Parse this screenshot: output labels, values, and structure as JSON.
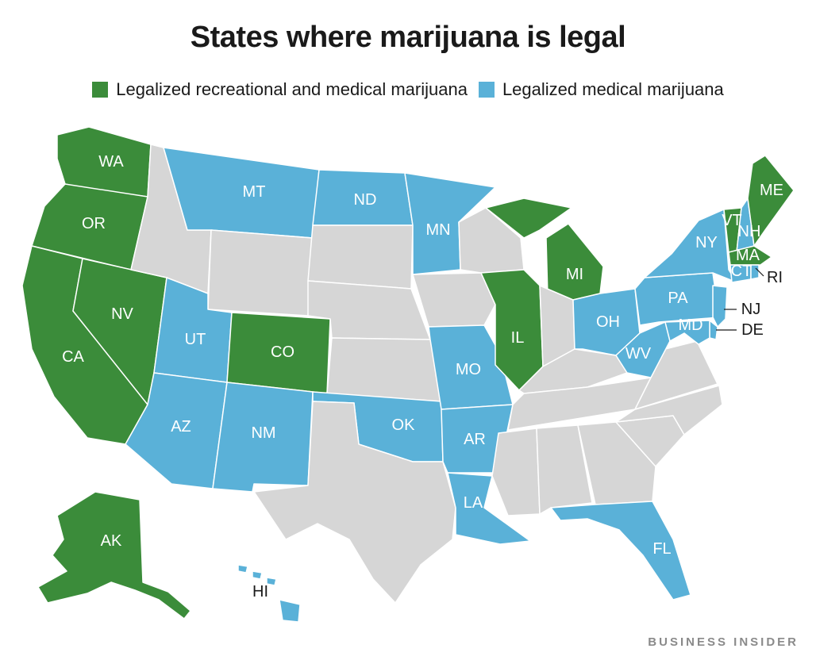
{
  "title": "States where marijuana is legal",
  "colors": {
    "recreational": "#3b8c3a",
    "medical": "#5ab1d8",
    "none": "#d6d6d6",
    "border": "#ffffff"
  },
  "legend": {
    "recreational": "Legalized recreational and medical marijuana",
    "medical": "Legalized medical marijuana"
  },
  "states": {
    "WA": {
      "label": "WA",
      "status": "recreational"
    },
    "OR": {
      "label": "OR",
      "status": "recreational"
    },
    "CA": {
      "label": "CA",
      "status": "recreational"
    },
    "NV": {
      "label": "NV",
      "status": "recreational"
    },
    "CO": {
      "label": "CO",
      "status": "recreational"
    },
    "AK": {
      "label": "AK",
      "status": "recreational"
    },
    "MI": {
      "label": "MI",
      "status": "recreational"
    },
    "IL": {
      "label": "IL",
      "status": "recreational"
    },
    "VT": {
      "label": "VT",
      "status": "recreational"
    },
    "MA": {
      "label": "MA",
      "status": "recreational"
    },
    "ME": {
      "label": "ME",
      "status": "recreational"
    },
    "MT": {
      "label": "MT",
      "status": "medical"
    },
    "ND": {
      "label": "ND",
      "status": "medical"
    },
    "MN": {
      "label": "MN",
      "status": "medical"
    },
    "UT": {
      "label": "UT",
      "status": "medical"
    },
    "AZ": {
      "label": "AZ",
      "status": "medical"
    },
    "NM": {
      "label": "NM",
      "status": "medical"
    },
    "OK": {
      "label": "OK",
      "status": "medical"
    },
    "MO": {
      "label": "MO",
      "status": "medical"
    },
    "AR": {
      "label": "AR",
      "status": "medical"
    },
    "LA": {
      "label": "LA",
      "status": "medical"
    },
    "FL": {
      "label": "FL",
      "status": "medical"
    },
    "OH": {
      "label": "OH",
      "status": "medical"
    },
    "WV": {
      "label": "WV",
      "status": "medical"
    },
    "PA": {
      "label": "PA",
      "status": "medical"
    },
    "NY": {
      "label": "NY",
      "status": "medical"
    },
    "NH": {
      "label": "NH",
      "status": "medical"
    },
    "CT": {
      "label": "CT",
      "status": "medical"
    },
    "RI": {
      "label": "RI",
      "status": "medical"
    },
    "NJ": {
      "label": "NJ",
      "status": "medical"
    },
    "DE": {
      "label": "DE",
      "status": "medical"
    },
    "MD": {
      "label": "MD",
      "status": "medical"
    },
    "HI": {
      "label": "HI",
      "status": "medical"
    }
  },
  "brand": "BUSINESS INSIDER"
}
